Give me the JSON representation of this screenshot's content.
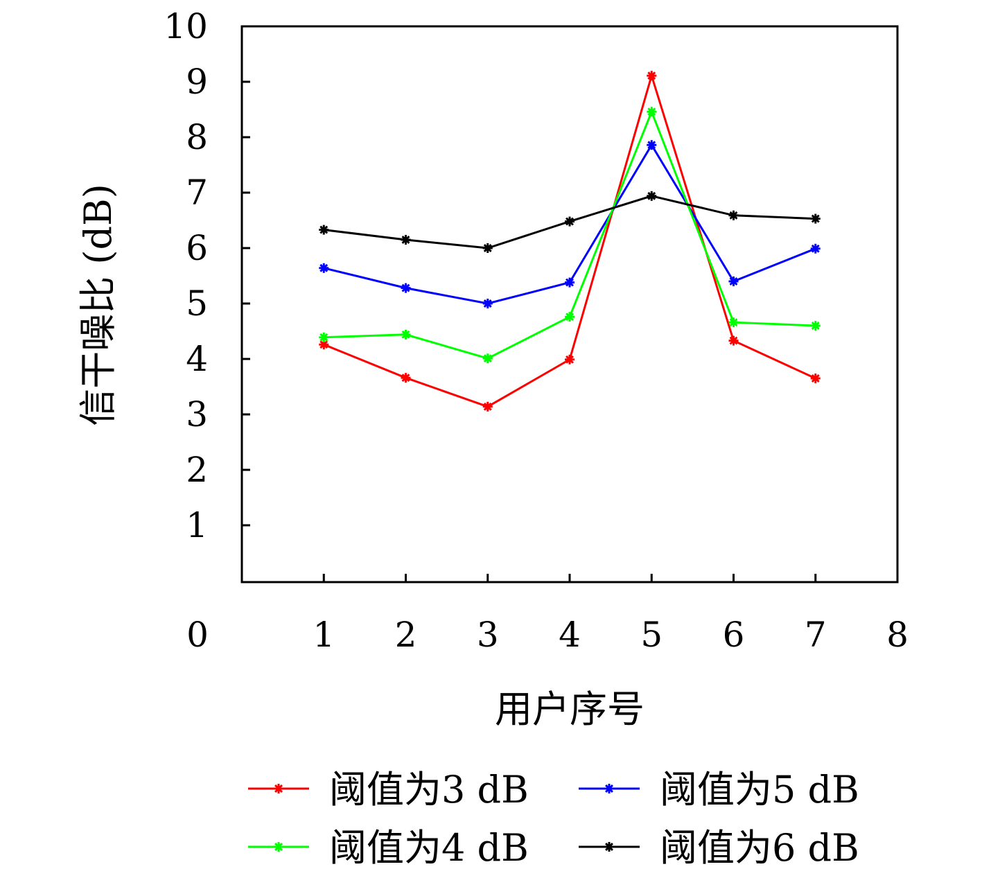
{
  "chart_data": {
    "type": "line",
    "title": "",
    "xlabel": "用户序号",
    "ylabel": "信干噪比 (dB)",
    "xlim": [
      0,
      8
    ],
    "ylim": [
      0,
      10
    ],
    "xticks": [
      "0",
      "1",
      "2",
      "3",
      "4",
      "5",
      "6",
      "7",
      "8"
    ],
    "yticks": [
      "1",
      "2",
      "3",
      "4",
      "5",
      "6",
      "7",
      "8",
      "9",
      "10"
    ],
    "grid": false,
    "legend_position": "bottom",
    "x": [
      1,
      2,
      3,
      4,
      5,
      6,
      7
    ],
    "series": [
      {
        "name": "阈值为3 dB",
        "color": "#ff0000",
        "marker": "asterisk",
        "values": [
          4.26,
          3.66,
          3.14,
          3.99,
          9.11,
          4.33,
          3.65
        ]
      },
      {
        "name": "阈值为5 dB",
        "color": "#0000ff",
        "marker": "asterisk",
        "values": [
          5.64,
          5.28,
          5.0,
          5.38,
          7.86,
          5.4,
          5.99
        ]
      },
      {
        "name": "阈值为4 dB",
        "color": "#00ff00",
        "marker": "asterisk",
        "values": [
          4.39,
          4.44,
          4.01,
          4.76,
          8.46,
          4.66,
          4.6
        ]
      },
      {
        "name": "阈值为6 dB",
        "color": "#000000",
        "marker": "asterisk",
        "values": [
          6.33,
          6.15,
          6.0,
          6.48,
          6.94,
          6.59,
          6.53
        ]
      }
    ]
  }
}
